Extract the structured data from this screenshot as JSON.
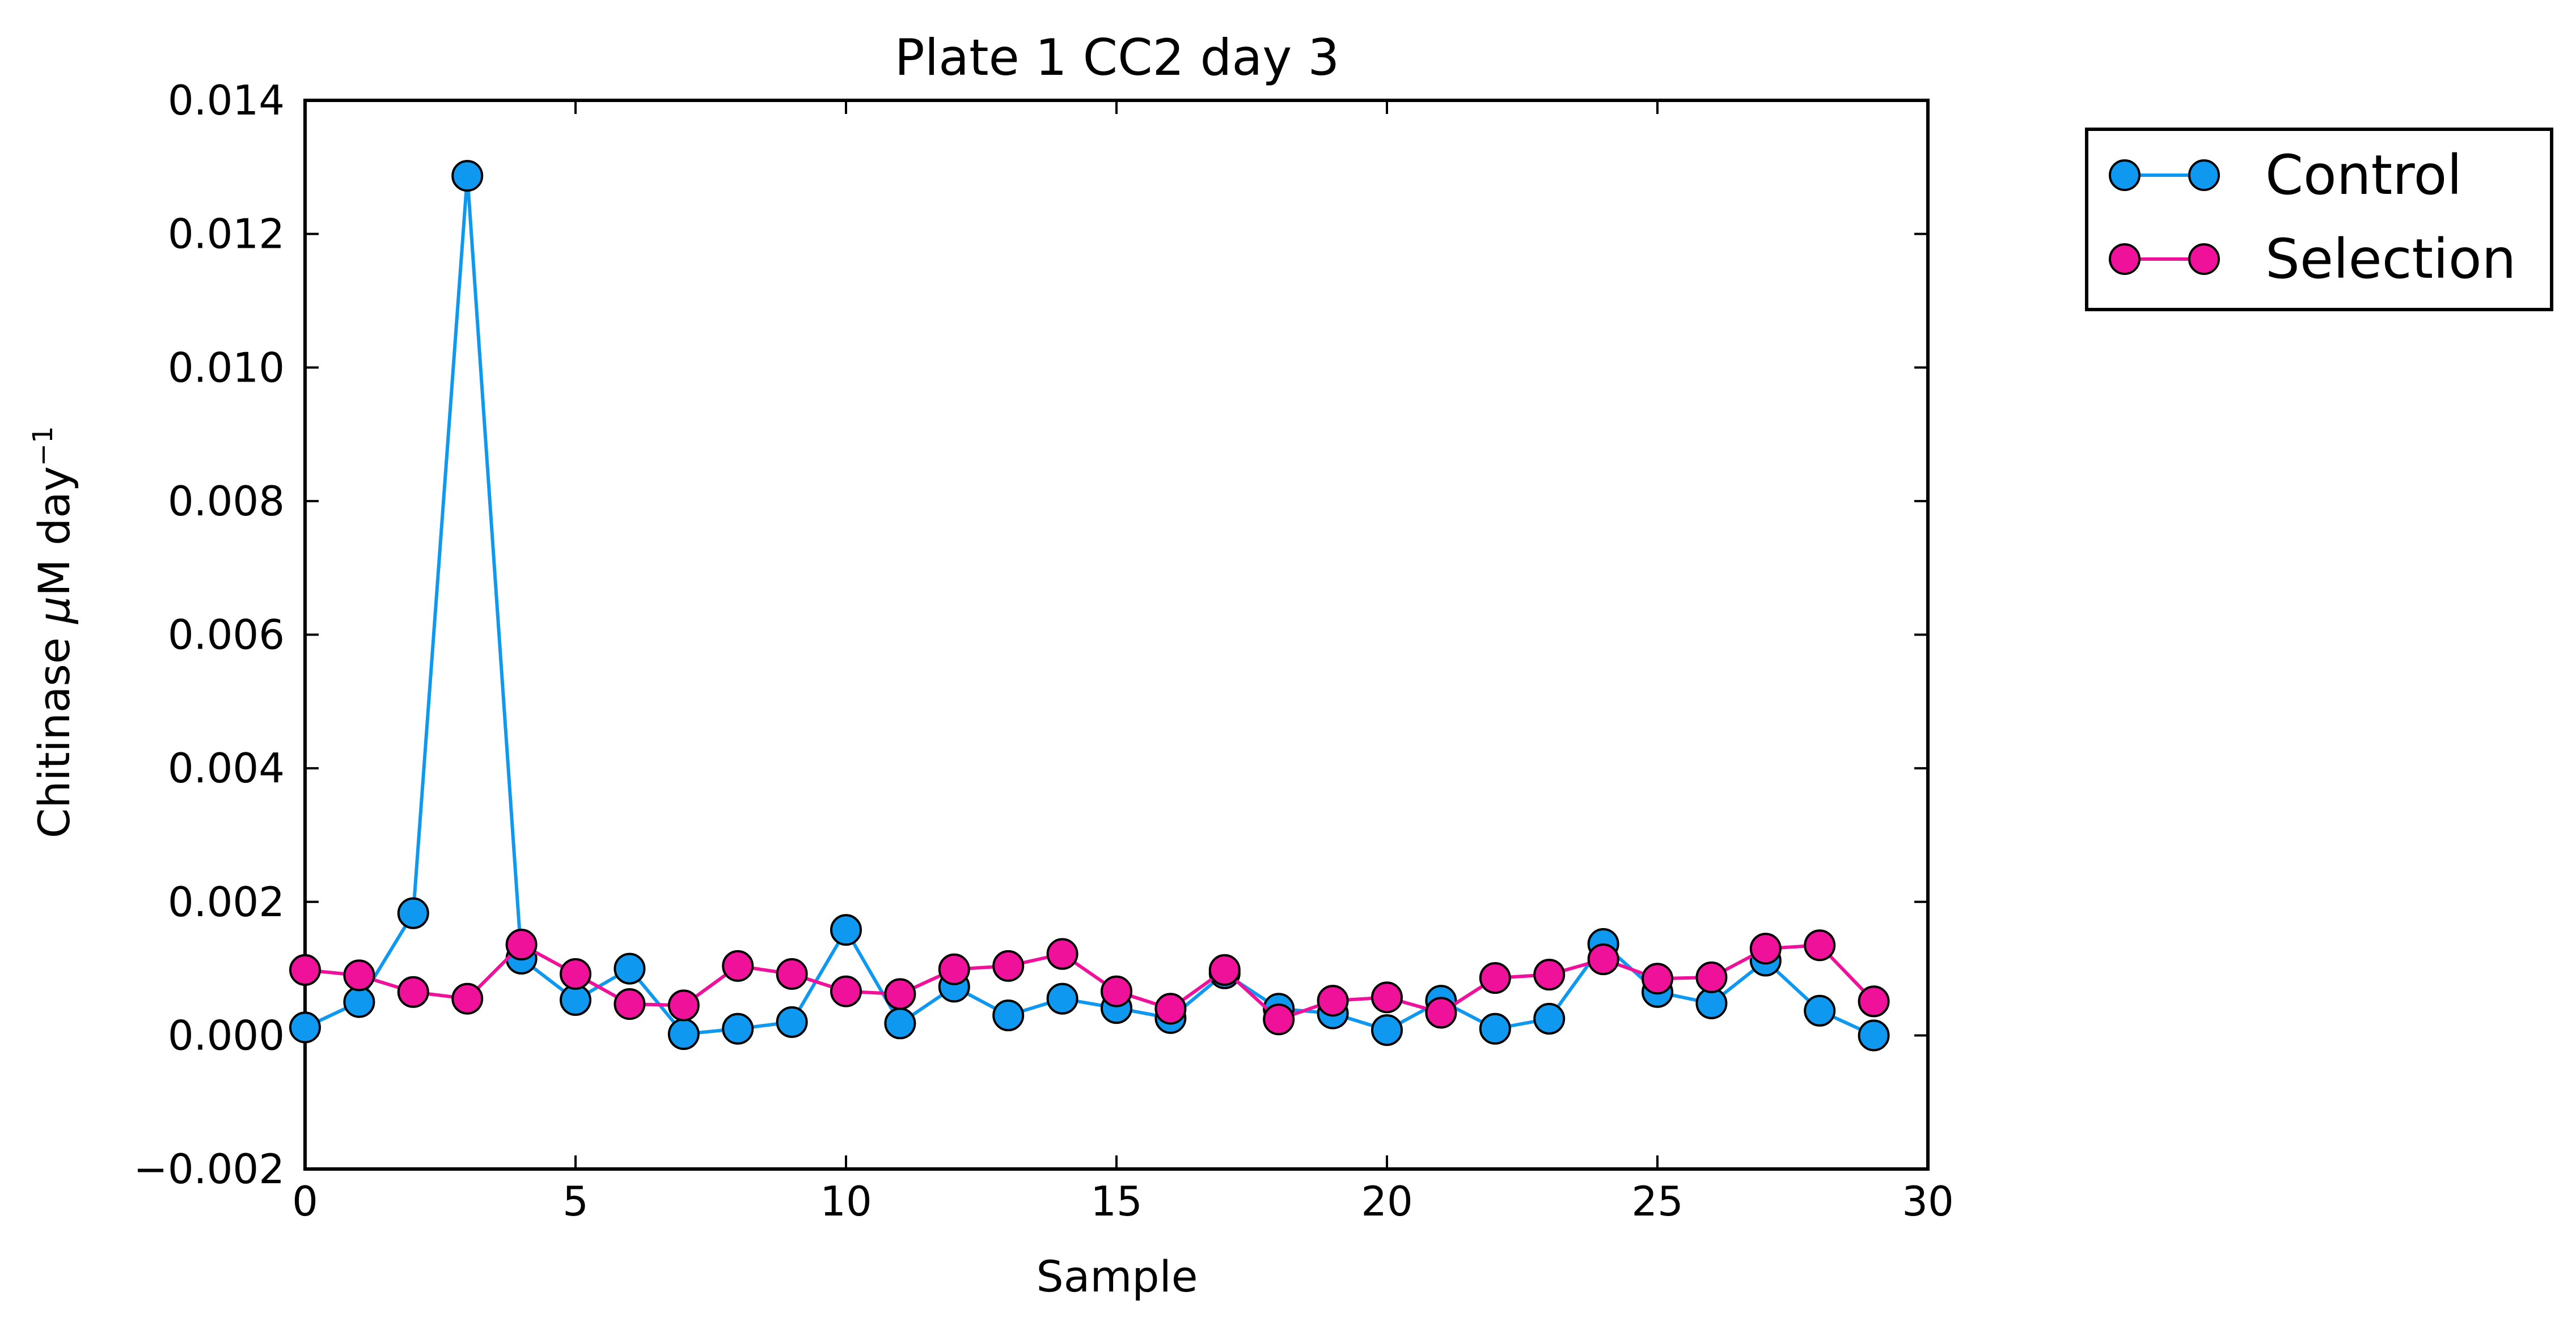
{
  "chart_data": {
    "type": "line",
    "title": "Plate 1 CC2 day 3",
    "xlabel": "Sample",
    "ylabel_main": "Chitinase ",
    "ylabel_mu": "μ",
    "ylabel_unit": "M day",
    "ylabel_exp": "−1",
    "xlim": [
      0,
      30
    ],
    "ylim": [
      -0.002,
      0.014
    ],
    "xticks": [
      0,
      5,
      10,
      15,
      20,
      25,
      30
    ],
    "xtick_labels": [
      "0",
      "5",
      "10",
      "15",
      "20",
      "25",
      "30"
    ],
    "yticks": [
      -0.002,
      0.0,
      0.002,
      0.004,
      0.006,
      0.008,
      0.01,
      0.012,
      0.014
    ],
    "ytick_labels": [
      "−0.002",
      "0.000",
      "0.002",
      "0.004",
      "0.006",
      "0.008",
      "0.010",
      "0.012",
      "0.014"
    ],
    "grid": false,
    "legend_position": "outside-right-top",
    "x": [
      0,
      1,
      2,
      3,
      4,
      5,
      6,
      7,
      8,
      9,
      10,
      11,
      12,
      13,
      14,
      15,
      16,
      17,
      18,
      19,
      20,
      21,
      22,
      23,
      24,
      25,
      26,
      27,
      28,
      29
    ],
    "series": [
      {
        "name": "Control",
        "color": "#0f98f0",
        "values": [
          0.00012,
          0.0005,
          0.00183,
          0.01287,
          0.00115,
          0.00053,
          0.001,
          2e-05,
          0.0001,
          0.0002,
          0.00158,
          0.00018,
          0.00073,
          0.0003,
          0.00055,
          0.00041,
          0.00026,
          0.00093,
          0.0004,
          0.00033,
          8e-05,
          0.00052,
          0.0001,
          0.00025,
          0.00137,
          0.00065,
          0.00048,
          0.00112,
          0.00037,
          0.0
        ]
      },
      {
        "name": "Selection",
        "color": "#f0119a",
        "values": [
          0.00098,
          0.0009,
          0.00065,
          0.00055,
          0.00136,
          0.00092,
          0.00047,
          0.00045,
          0.00104,
          0.00092,
          0.00066,
          0.00062,
          0.00099,
          0.00104,
          0.00122,
          0.00066,
          0.0004,
          0.00098,
          0.00024,
          0.00052,
          0.00057,
          0.00034,
          0.00086,
          0.00091,
          0.00114,
          0.00085,
          0.00087,
          0.0013,
          0.00135,
          0.00051
        ]
      }
    ]
  }
}
